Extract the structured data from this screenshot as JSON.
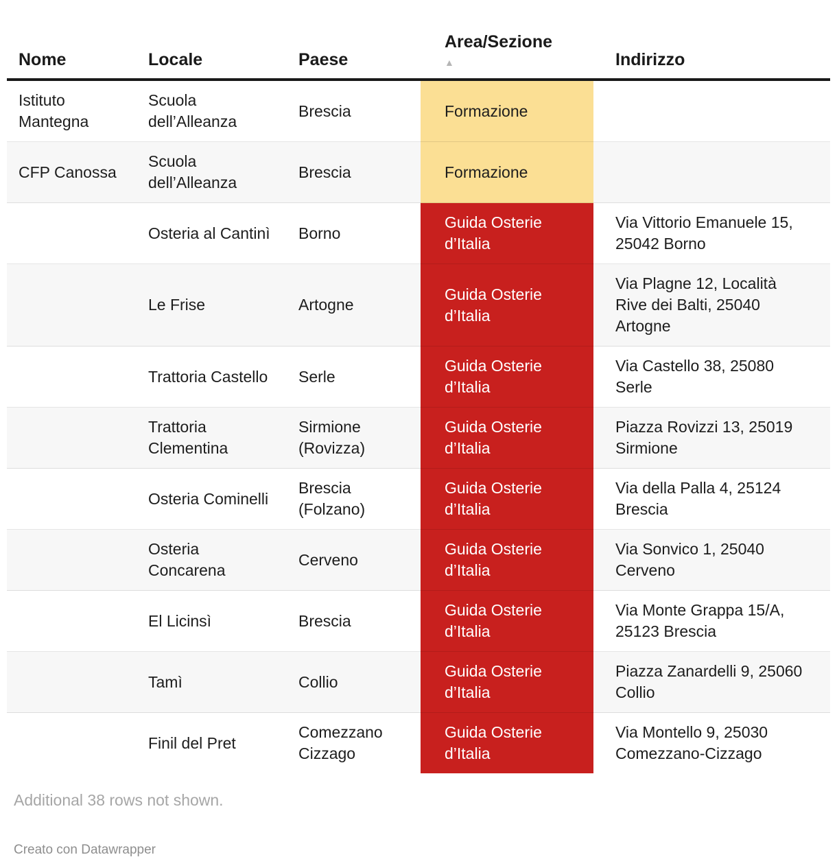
{
  "table": {
    "columns": [
      {
        "label": "Nome",
        "slug": "nome",
        "sorted": false
      },
      {
        "label": "Locale",
        "slug": "locale",
        "sorted": false
      },
      {
        "label": "Paese",
        "slug": "paese",
        "sorted": false
      },
      {
        "label": "Area/Sezione",
        "slug": "area-sezione",
        "sorted": true
      },
      {
        "label": "Indirizzo",
        "slug": "indirizzo",
        "sorted": false
      }
    ],
    "sort_ascending_icon": "▲",
    "rows": [
      {
        "nome": "Istituto Mantegna",
        "locale": "Scuola dell’Alleanza",
        "paese": "Brescia",
        "area": "Formazione",
        "area_style": "formazione",
        "indirizzo": ""
      },
      {
        "nome": "CFP Canossa",
        "locale": "Scuola dell’Alleanza",
        "paese": "Brescia",
        "area": "Formazione",
        "area_style": "formazione",
        "indirizzo": ""
      },
      {
        "nome": "",
        "locale": "Osteria al Cantinì",
        "paese": "Borno",
        "area": "Guida Osterie d’Italia",
        "area_style": "osterie",
        "indirizzo": "Via Vittorio Emanuele 15, 25042 Borno"
      },
      {
        "nome": "",
        "locale": "Le Frise",
        "paese": "Artogne",
        "area": "Guida Osterie d’Italia",
        "area_style": "osterie",
        "indirizzo": "Via Plagne 12, Località Rive dei Balti, 25040 Artogne"
      },
      {
        "nome": "",
        "locale": "Trattoria Castello",
        "paese": "Serle",
        "area": "Guida Osterie d’Italia",
        "area_style": "osterie",
        "indirizzo": "Via Castello 38, 25080 Serle"
      },
      {
        "nome": "",
        "locale": "Trattoria Clementina",
        "paese": "Sirmione (Rovizza)",
        "area": "Guida Osterie d’Italia",
        "area_style": "osterie",
        "indirizzo": "Piazza Rovizzi 13, 25019 Sirmione"
      },
      {
        "nome": "",
        "locale": "Osteria Cominelli",
        "paese": "Brescia (Folzano)",
        "area": "Guida Osterie d’Italia",
        "area_style": "osterie",
        "indirizzo": "Via della Palla 4, 25124 Brescia"
      },
      {
        "nome": "",
        "locale": "Osteria Concarena",
        "paese": "Cerveno",
        "area": "Guida Osterie d’Italia",
        "area_style": "osterie",
        "indirizzo": "Via Sonvico 1, 25040 Cerveno"
      },
      {
        "nome": "",
        "locale": "El Licinsì",
        "paese": "Brescia",
        "area": "Guida Osterie d’Italia",
        "area_style": "osterie",
        "indirizzo": "Via Monte Grappa 15/A, 25123 Brescia"
      },
      {
        "nome": "",
        "locale": "Tamì",
        "paese": "Collio",
        "area": "Guida Osterie d’Italia",
        "area_style": "osterie",
        "indirizzo": "Piazza Zanardelli 9, 25060 Collio"
      },
      {
        "nome": "",
        "locale": "Finil del Pret",
        "paese": "Comezzano Cizzago",
        "area": "Guida Osterie d’Italia",
        "area_style": "osterie",
        "indirizzo": "Via Montello 9, 25030 Comezzano-Cizzago"
      }
    ]
  },
  "colors": {
    "formazione_bg": "#fbdf94",
    "formazione_text": "#1d1d1d",
    "osterie_bg": "#c8201e",
    "osterie_text": "#ffffff",
    "stripe_bg": "#f7f7f7",
    "header_rule": "#191919"
  },
  "footer": {
    "note": "Additional 38 rows not shown.",
    "attribution": "Creato con Datawrapper"
  }
}
